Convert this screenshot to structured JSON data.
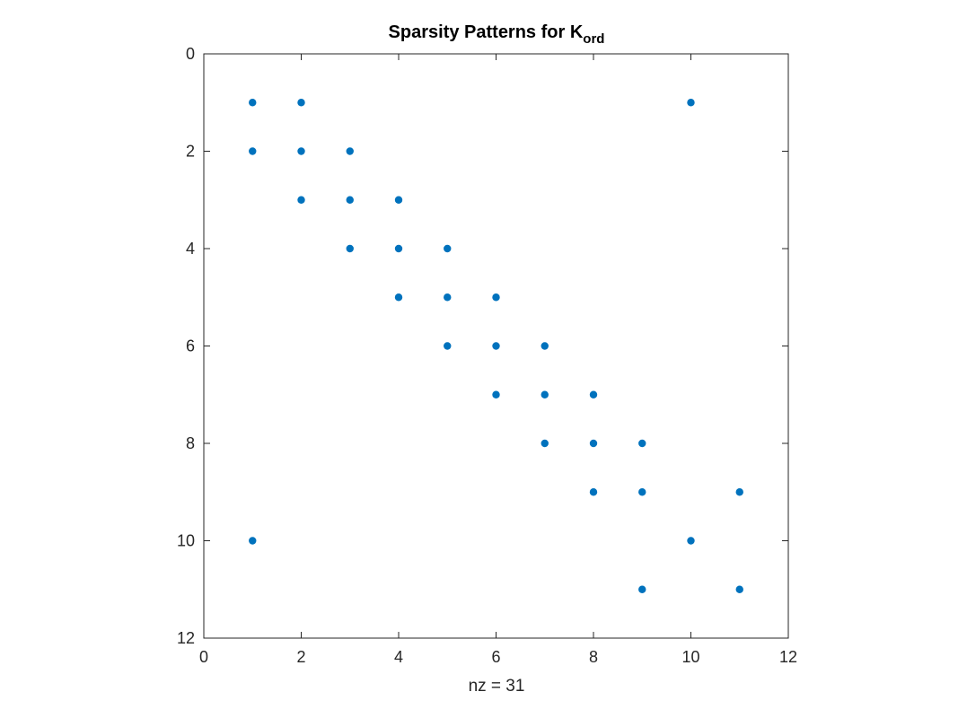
{
  "chart_data": {
    "type": "scatter",
    "title": "Sparsity Patterns for K",
    "title_subscript": "ord",
    "xlabel": "nz = 31",
    "ylabel": "",
    "xlim": [
      0,
      12
    ],
    "ylim": [
      0,
      12
    ],
    "y_reversed": true,
    "x_ticks": [
      0,
      2,
      4,
      6,
      8,
      10,
      12
    ],
    "y_ticks": [
      0,
      2,
      4,
      6,
      8,
      10,
      12
    ],
    "grid": false,
    "marker_color": "#0072BD",
    "points": [
      [
        1,
        1
      ],
      [
        2,
        1
      ],
      [
        10,
        1
      ],
      [
        1,
        2
      ],
      [
        2,
        2
      ],
      [
        3,
        2
      ],
      [
        2,
        3
      ],
      [
        3,
        3
      ],
      [
        4,
        3
      ],
      [
        3,
        4
      ],
      [
        4,
        4
      ],
      [
        5,
        4
      ],
      [
        4,
        5
      ],
      [
        5,
        5
      ],
      [
        6,
        5
      ],
      [
        5,
        6
      ],
      [
        6,
        6
      ],
      [
        7,
        6
      ],
      [
        6,
        7
      ],
      [
        7,
        7
      ],
      [
        8,
        7
      ],
      [
        7,
        8
      ],
      [
        8,
        8
      ],
      [
        9,
        8
      ],
      [
        8,
        9
      ],
      [
        9,
        9
      ],
      [
        11,
        9
      ],
      [
        1,
        10
      ],
      [
        10,
        10
      ],
      [
        9,
        11
      ],
      [
        11,
        11
      ]
    ]
  }
}
